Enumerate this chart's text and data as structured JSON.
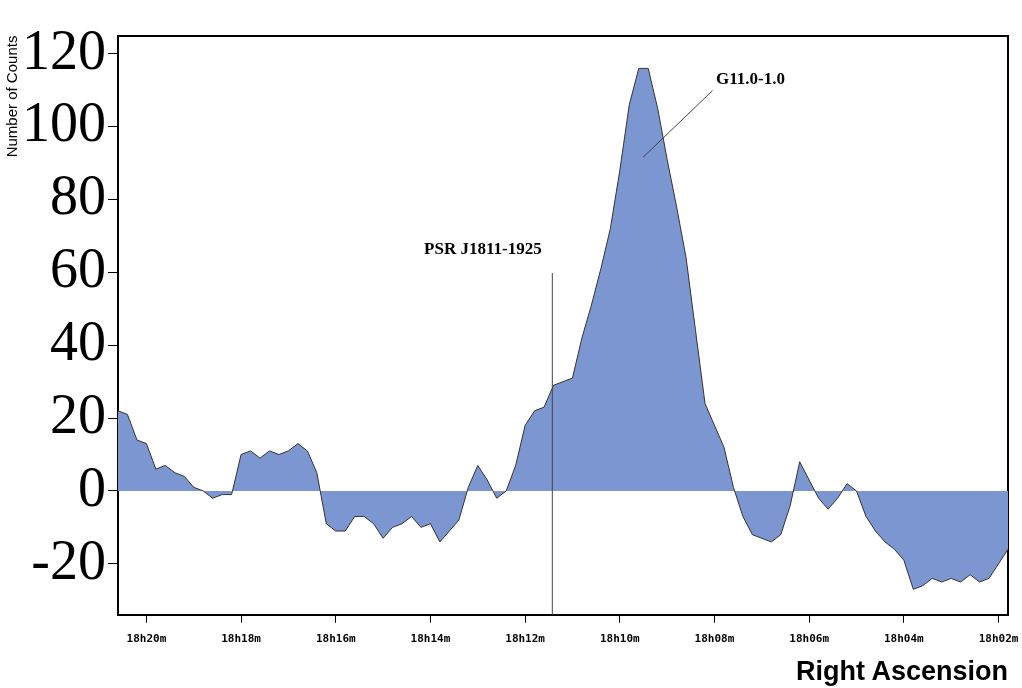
{
  "chart_data": {
    "type": "area",
    "xlabel": "Right Ascension",
    "ylabel": "Number of Counts",
    "categories": [
      null,
      null,
      null,
      "18h20m",
      null,
      null,
      null,
      null,
      null,
      null,
      null,
      null,
      null,
      "18h18m",
      null,
      null,
      null,
      null,
      null,
      null,
      null,
      null,
      null,
      "18h16m",
      null,
      null,
      null,
      null,
      null,
      null,
      null,
      null,
      null,
      "18h14m",
      null,
      null,
      null,
      null,
      null,
      null,
      null,
      null,
      null,
      "18h12m",
      null,
      null,
      null,
      null,
      null,
      null,
      null,
      null,
      null,
      "18h10m",
      null,
      null,
      null,
      null,
      null,
      null,
      null,
      null,
      null,
      "18h08m",
      null,
      null,
      null,
      null,
      null,
      null,
      null,
      null,
      null,
      "18h06m",
      null,
      null,
      null,
      null,
      null,
      null,
      null,
      null,
      null,
      "18h04m",
      null,
      null,
      null,
      null,
      null,
      null,
      null,
      null,
      null,
      "18h02m",
      null
    ],
    "ylim": [
      -34,
      125
    ],
    "yticks": [
      -20,
      0,
      20,
      40,
      60,
      80,
      100,
      120
    ],
    "grid": false,
    "legend": false,
    "series": [
      {
        "color": "#7b96d0",
        "values": [
          22,
          21,
          14,
          13,
          6,
          7,
          5,
          4,
          1,
          0,
          -2,
          -1,
          -1,
          10,
          11,
          9,
          11,
          10,
          11,
          13,
          11,
          5,
          -9,
          -11,
          -11,
          -7,
          -7,
          -9,
          -13,
          -10,
          -9,
          -7,
          -10,
          -9,
          -14,
          -11,
          -8,
          1,
          7,
          3,
          -2,
          0,
          7,
          18,
          22,
          23,
          29,
          30,
          31,
          42,
          51,
          61,
          72,
          88,
          106,
          116,
          116,
          105,
          91,
          78,
          64,
          44,
          24,
          18,
          12,
          1,
          -7,
          -12,
          -13,
          -14,
          -12,
          -4,
          8,
          3,
          -2,
          -5,
          -2,
          2,
          0,
          -7,
          -11,
          -14,
          -16,
          -19,
          -27,
          -26,
          -24,
          -25,
          -24,
          -25,
          -23,
          -25,
          -24,
          -20,
          -16
        ]
      }
    ],
    "annotations": [
      "PSR J1811-1925",
      "G11.0-1.0"
    ]
  }
}
